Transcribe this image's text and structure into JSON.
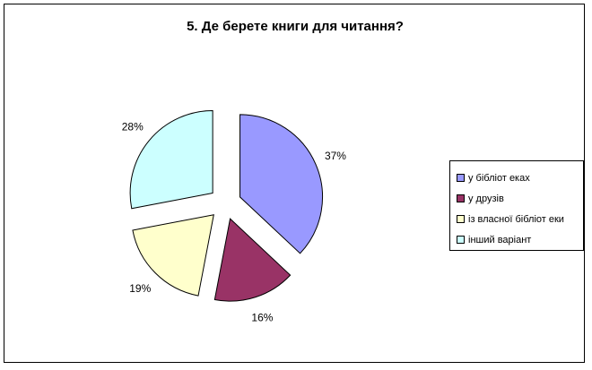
{
  "chart_data": {
    "type": "pie",
    "title": "5. Де берете книги для читання?",
    "categories": [
      "у бібліот еках",
      "у друзів",
      "із власної бібліот еки",
      "інший варіант"
    ],
    "values": [
      37,
      16,
      19,
      28
    ],
    "value_labels": [
      "37%",
      "16%",
      "19%",
      "28%"
    ],
    "colors": [
      "#9999ff",
      "#993366",
      "#ffffcc",
      "#ccffff"
    ],
    "legend_position": "right",
    "exploded": true
  }
}
